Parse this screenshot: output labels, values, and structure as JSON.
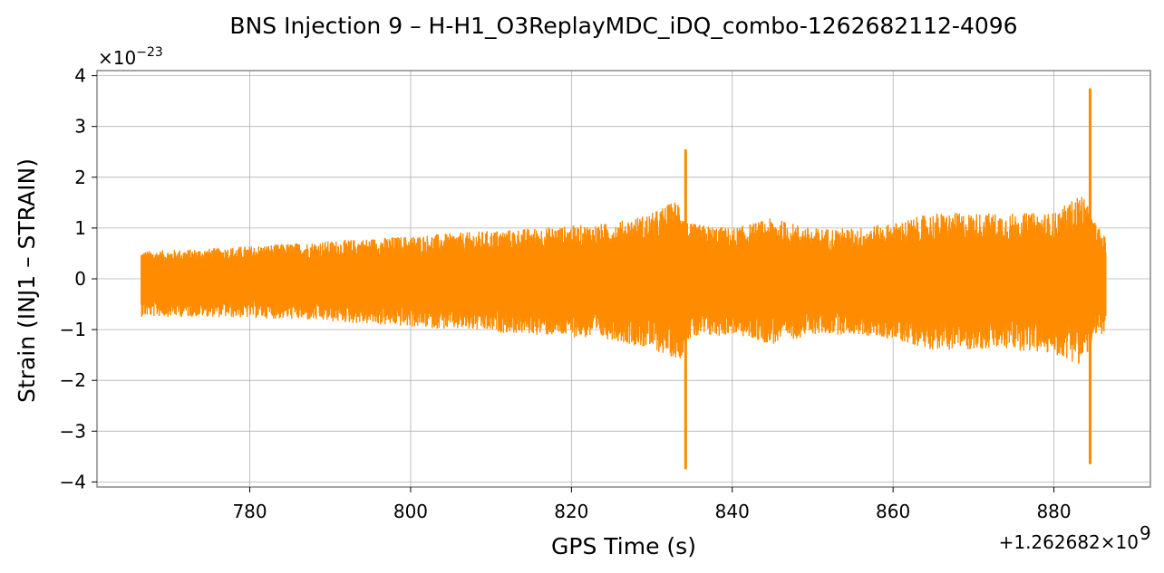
{
  "chart_data": {
    "type": "line",
    "title": "BNS Injection 9 – H-H1_O3ReplayMDC_iDQ_combo-1262682112-4096",
    "xlabel": "GPS Time (s)",
    "ylabel": "Strain (INJ1 – STRAIN)",
    "x_offset_label": "+1.262682×10",
    "x_offset_exponent": "9",
    "y_scale_label": "×10",
    "y_scale_exponent": "−23",
    "xlim": [
      761,
      892
    ],
    "ylim": [
      -4.1,
      4.1
    ],
    "x_ticks": [
      {
        "value": 780,
        "label": "780"
      },
      {
        "value": 800,
        "label": "800"
      },
      {
        "value": 820,
        "label": "820"
      },
      {
        "value": 840,
        "label": "840"
      },
      {
        "value": 860,
        "label": "860"
      },
      {
        "value": 880,
        "label": "880"
      }
    ],
    "y_ticks": [
      {
        "value": 4,
        "label": "4"
      },
      {
        "value": 3,
        "label": "3"
      },
      {
        "value": 2,
        "label": "2"
      },
      {
        "value": 1,
        "label": "1"
      },
      {
        "value": 0,
        "label": "0"
      },
      {
        "value": -1,
        "label": "−1"
      },
      {
        "value": -2,
        "label": "−2"
      },
      {
        "value": -3,
        "label": "−3"
      },
      {
        "value": -4,
        "label": "−4"
      }
    ],
    "grid": true,
    "series": [
      {
        "color": "#ff8c00",
        "x_start": 766.5,
        "x_end": 886.5,
        "envelope": [
          [
            766.5,
            0.55,
            -0.75
          ],
          [
            775,
            0.6,
            -0.75
          ],
          [
            785,
            0.7,
            -0.8
          ],
          [
            795,
            0.8,
            -0.9
          ],
          [
            805,
            0.9,
            -1.0
          ],
          [
            815,
            1.0,
            -1.1
          ],
          [
            825,
            1.1,
            -1.2
          ],
          [
            830,
            1.3,
            -1.4
          ],
          [
            833.5,
            1.6,
            -1.6
          ],
          [
            834.5,
            1.1,
            -1.2
          ],
          [
            840,
            1.0,
            -1.1
          ],
          [
            845,
            1.2,
            -1.3
          ],
          [
            850,
            1.0,
            -1.1
          ],
          [
            855,
            1.0,
            -1.1
          ],
          [
            860,
            1.1,
            -1.2
          ],
          [
            865,
            1.3,
            -1.4
          ],
          [
            870,
            1.3,
            -1.4
          ],
          [
            875,
            1.3,
            -1.4
          ],
          [
            880,
            1.3,
            -1.5
          ],
          [
            883.5,
            1.7,
            -1.7
          ],
          [
            884.8,
            1.2,
            -1.3
          ],
          [
            886.5,
            0.8,
            -1.0
          ]
        ],
        "spikes": [
          {
            "x": 834.2,
            "max": 2.55,
            "min": -3.75
          },
          {
            "x": 884.5,
            "max": 3.75,
            "min": -3.65
          }
        ]
      }
    ]
  }
}
